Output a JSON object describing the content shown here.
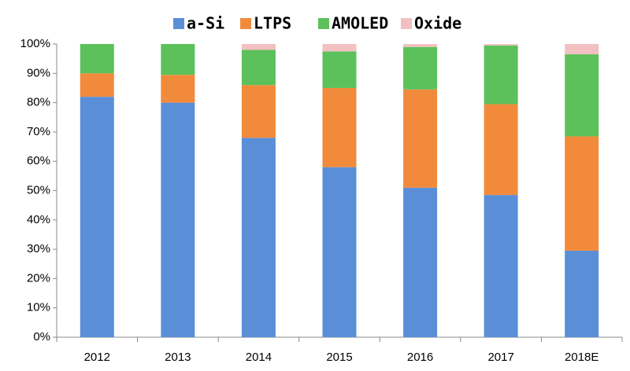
{
  "chart_data": {
    "type": "stacked_bar",
    "categories": [
      "2012",
      "2013",
      "2014",
      "2015",
      "2016",
      "2017",
      "2018E"
    ],
    "series": [
      {
        "name": "a-Si",
        "color": "#5a8fd8",
        "values": [
          82,
          80,
          68,
          58,
          51,
          48.5,
          29.5
        ]
      },
      {
        "name": "LTPS",
        "color": "#f28a3c",
        "values": [
          8,
          9.5,
          18,
          27,
          33.5,
          31,
          39
        ]
      },
      {
        "name": "AMOLED",
        "color": "#5cc15a",
        "values": [
          10,
          10.5,
          12,
          12.5,
          14.5,
          20,
          28
        ]
      },
      {
        "name": "Oxide",
        "color": "#f2c0c0",
        "values": [
          0,
          0,
          2,
          2.5,
          1,
          0.5,
          3.5
        ]
      }
    ],
    "ylim": [
      0,
      100
    ],
    "yticks": [
      {
        "value": 0,
        "label": "0%"
      },
      {
        "value": 10,
        "label": "10%"
      },
      {
        "value": 20,
        "label": "20%"
      },
      {
        "value": 30,
        "label": "30%"
      },
      {
        "value": 40,
        "label": "40%"
      },
      {
        "value": 50,
        "label": "50%"
      },
      {
        "value": 60,
        "label": "60%"
      },
      {
        "value": 70,
        "label": "70%"
      },
      {
        "value": 80,
        "label": "80%"
      },
      {
        "value": 90,
        "label": "90%"
      },
      {
        "value": 100,
        "label": "100%"
      }
    ],
    "legend": "top"
  }
}
